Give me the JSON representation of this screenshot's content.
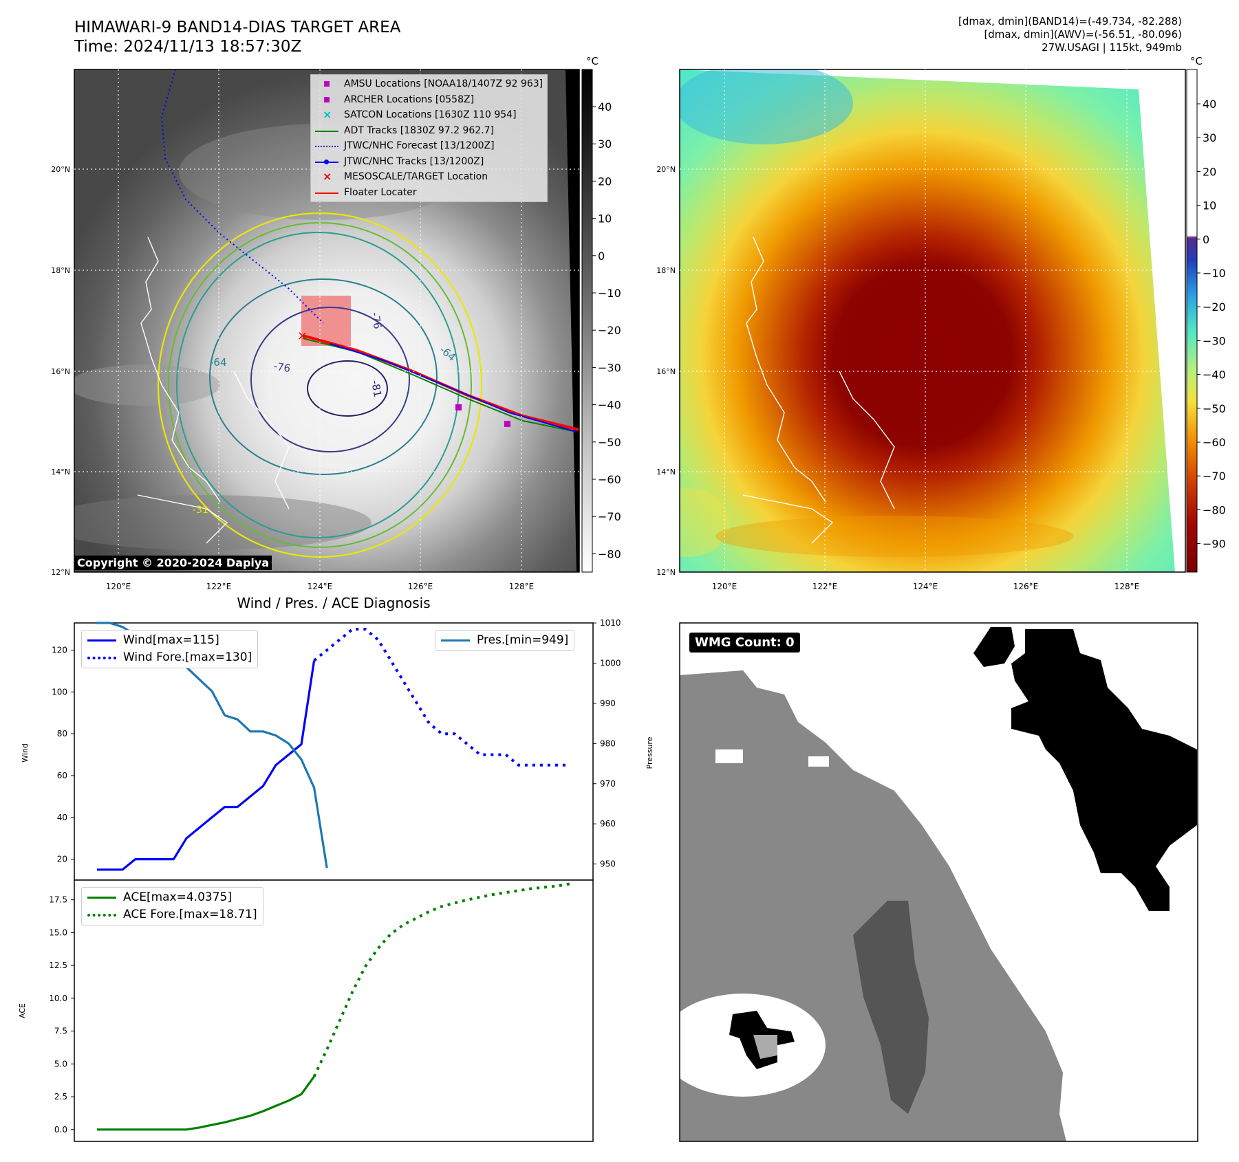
{
  "header": {
    "title_line1": "HIMAWARI-9 BAND14-DIAS TARGET AREA",
    "title_line2": "Time: 2024/11/13 18:57:30Z",
    "right_line1": "[dmax, dmin](BAND14)=(-49.734, -82.288)",
    "right_line2": "[dmax, dmin](AWV)=(-56.51, -80.096)",
    "right_line3": "27W.USAGI | 115kt, 949mb"
  },
  "map": {
    "lon_ticks": [
      "120°E",
      "122°E",
      "124°E",
      "126°E",
      "128°E"
    ],
    "lat_ticks": [
      "12°N",
      "14°N",
      "16°N",
      "18°N",
      "20°N"
    ],
    "copyright": "Copyright © 2020-2024 Dapiya",
    "contour_labels": [
      "-76",
      "-76",
      "-64",
      "-64",
      "-81",
      "-31"
    ],
    "legend": [
      {
        "label": "AMSU Locations [NOAA18/1407Z 92 963]",
        "color": "#c000c0",
        "sym": "square"
      },
      {
        "label": "ARCHER Locations [0558Z]",
        "color": "#c000c0",
        "sym": "square"
      },
      {
        "label": "SATCON Locations [1630Z 110 954]",
        "color": "#00c0c0",
        "sym": "x"
      },
      {
        "label": "ADT Tracks [1830Z 97.2 962.7]",
        "color": "#007f00",
        "sym": "line"
      },
      {
        "label": "JTWC/NHC Forecast [13/1200Z]",
        "color": "#0000ff",
        "sym": "dotted"
      },
      {
        "label": "JTWC/NHC Tracks [13/1200Z]",
        "color": "#0000ff",
        "sym": "linedot"
      },
      {
        "label": "MESOSCALE/TARGET Location",
        "color": "#ff0000",
        "sym": "x"
      },
      {
        "label": "Floater Locater",
        "color": "#ff0000",
        "sym": "line"
      }
    ]
  },
  "colorbars": {
    "unit": "°C",
    "gray_ticks": [
      "40",
      "30",
      "20",
      "10",
      "0",
      "−10",
      "−20",
      "−30",
      "−40",
      "−50",
      "−60",
      "−70",
      "−80"
    ],
    "color_ticks": [
      "40",
      "30",
      "20",
      "10",
      "0",
      "−10",
      "−20",
      "−30",
      "−40",
      "−50",
      "−60",
      "−70",
      "−80",
      "−90"
    ]
  },
  "diagnosis": {
    "title": "Wind / Pres. / ACE Diagnosis",
    "wind_label": "Wind[max=115]",
    "wind_fore_label": "Wind Fore.[max=130]",
    "pres_label": "Pres.[min=949]",
    "ace_label": "ACE[max=4.0375]",
    "ace_fore_label": "ACE Fore.[max=18.71]",
    "ylabel_wind": "Wind",
    "ylabel_pres": "Pressure",
    "ylabel_ace": "ACE",
    "wind_yticks": [
      "20",
      "40",
      "60",
      "80",
      "100",
      "120"
    ],
    "pres_yticks": [
      "950",
      "960",
      "970",
      "980",
      "990",
      "1000",
      "1010"
    ],
    "ace_yticks": [
      "0.0",
      "2.5",
      "5.0",
      "7.5",
      "10.0",
      "12.5",
      "15.0",
      "17.5"
    ]
  },
  "wmg": {
    "label": "WMG Count: 0"
  },
  "chart_data": [
    {
      "type": "line",
      "title": "Wind / Pres. / ACE Diagnosis",
      "ylabel": "Wind",
      "ylim": [
        10,
        133
      ],
      "xlim": [
        0,
        38
      ],
      "series": [
        {
          "name": "Wind[max=115]",
          "color": "#0000ff",
          "style": "solid",
          "x": [
            0,
            1,
            2,
            3,
            4,
            5,
            6,
            7,
            8,
            9,
            10,
            11,
            12,
            13,
            14,
            15,
            16,
            17
          ],
          "values": [
            15,
            15,
            15,
            20,
            20,
            20,
            20,
            30,
            35,
            40,
            45,
            45,
            50,
            55,
            65,
            70,
            75,
            115
          ]
        },
        {
          "name": "Wind Fore.[max=130]",
          "color": "#0000ff",
          "style": "dotted",
          "x": [
            17,
            18,
            19,
            20,
            21,
            22,
            23,
            24,
            25,
            26,
            27,
            28,
            29,
            30,
            31,
            32,
            33,
            34,
            35,
            36,
            37
          ],
          "values": [
            115,
            120,
            125,
            130,
            130,
            125,
            115,
            105,
            95,
            85,
            80,
            80,
            75,
            70,
            70,
            70,
            65,
            65,
            65,
            65,
            65
          ]
        }
      ]
    },
    {
      "type": "line",
      "ylabel": "Pressure",
      "ylim": [
        946,
        1010
      ],
      "xlim": [
        0,
        38
      ],
      "series": [
        {
          "name": "Pres.[min=949]",
          "color": "#1f77b4",
          "style": "solid",
          "x": [
            0,
            1,
            2,
            3,
            4,
            5,
            6,
            7,
            8,
            9,
            10,
            11,
            12,
            13,
            14,
            15,
            16,
            17,
            18
          ],
          "values": [
            1010,
            1010,
            1009,
            1007,
            1006,
            1006,
            1005,
            999,
            996,
            993,
            987,
            986,
            983,
            983,
            982,
            980,
            976,
            969,
            949
          ]
        }
      ]
    },
    {
      "type": "line",
      "ylabel": "ACE",
      "ylim": [
        -0.9,
        19.0
      ],
      "xlim": [
        0,
        38
      ],
      "series": [
        {
          "name": "ACE[max=4.0375]",
          "color": "#007f00",
          "style": "solid",
          "x": [
            0,
            1,
            2,
            3,
            4,
            5,
            6,
            7,
            8,
            9,
            10,
            11,
            12,
            13,
            14,
            15,
            16,
            17
          ],
          "values": [
            0,
            0,
            0,
            0,
            0,
            0,
            0,
            0,
            0.15,
            0.35,
            0.55,
            0.8,
            1.05,
            1.4,
            1.8,
            2.2,
            2.7,
            4.04
          ]
        },
        {
          "name": "ACE Fore.[max=18.71]",
          "color": "#007f00",
          "style": "dotted",
          "x": [
            17,
            18,
            19,
            20,
            21,
            22,
            23,
            24,
            25,
            26,
            27,
            28,
            29,
            30,
            31,
            32,
            33,
            34,
            35,
            36,
            37
          ],
          "values": [
            4.04,
            6.1,
            8.3,
            10.5,
            12.4,
            13.8,
            14.9,
            15.6,
            16.1,
            16.6,
            17.0,
            17.25,
            17.5,
            17.7,
            17.9,
            18.05,
            18.2,
            18.35,
            18.45,
            18.55,
            18.71
          ]
        }
      ]
    }
  ]
}
